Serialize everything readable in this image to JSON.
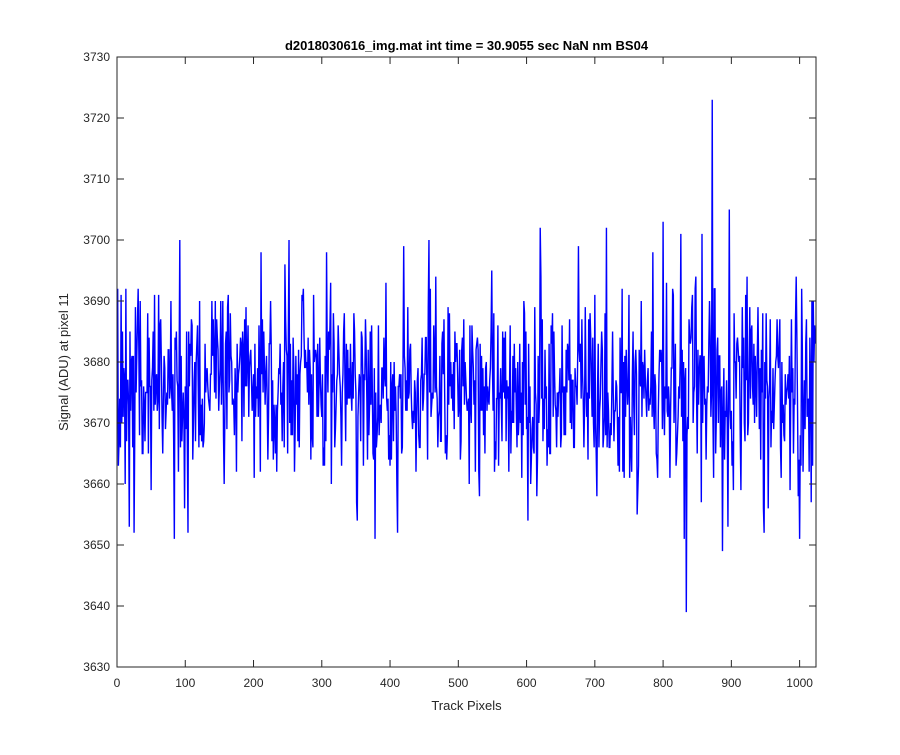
{
  "chart_data": {
    "type": "line",
    "title": "d2018030616_img.mat int time = 30.9055 sec  NaN nm BS04",
    "xlabel": "Track Pixels",
    "ylabel": "Signal (ADU) at pixel 11",
    "xlim": [
      0,
      1024
    ],
    "ylim": [
      3630,
      3730
    ],
    "xticks": [
      "0",
      "100",
      "200",
      "300",
      "400",
      "500",
      "600",
      "700",
      "800",
      "900",
      "1000"
    ],
    "yticks": [
      "3630",
      "3640",
      "3650",
      "3660",
      "3670",
      "3680",
      "3690",
      "3700",
      "3710",
      "3720",
      "3730"
    ],
    "grid": false,
    "legend": "none",
    "line_color": "#0000ff",
    "n_points": 1024,
    "noise": {
      "mean": 3676,
      "std": 8
    },
    "notable_points": [
      {
        "x": 1,
        "y": 3692
      },
      {
        "x": 13,
        "y": 3692
      },
      {
        "x": 18,
        "y": 3653
      },
      {
        "x": 25,
        "y": 3652
      },
      {
        "x": 84,
        "y": 3651
      },
      {
        "x": 92,
        "y": 3700
      },
      {
        "x": 104,
        "y": 3652
      },
      {
        "x": 252,
        "y": 3700
      },
      {
        "x": 378,
        "y": 3651
      },
      {
        "x": 457,
        "y": 3700
      },
      {
        "x": 620,
        "y": 3702
      },
      {
        "x": 717,
        "y": 3702
      },
      {
        "x": 762,
        "y": 3655
      },
      {
        "x": 800,
        "y": 3703
      },
      {
        "x": 826,
        "y": 3701
      },
      {
        "x": 831,
        "y": 3651
      },
      {
        "x": 834,
        "y": 3639
      },
      {
        "x": 857,
        "y": 3701
      },
      {
        "x": 872,
        "y": 3723
      },
      {
        "x": 887,
        "y": 3649
      },
      {
        "x": 897,
        "y": 3705
      },
      {
        "x": 1000,
        "y": 3651
      }
    ]
  }
}
